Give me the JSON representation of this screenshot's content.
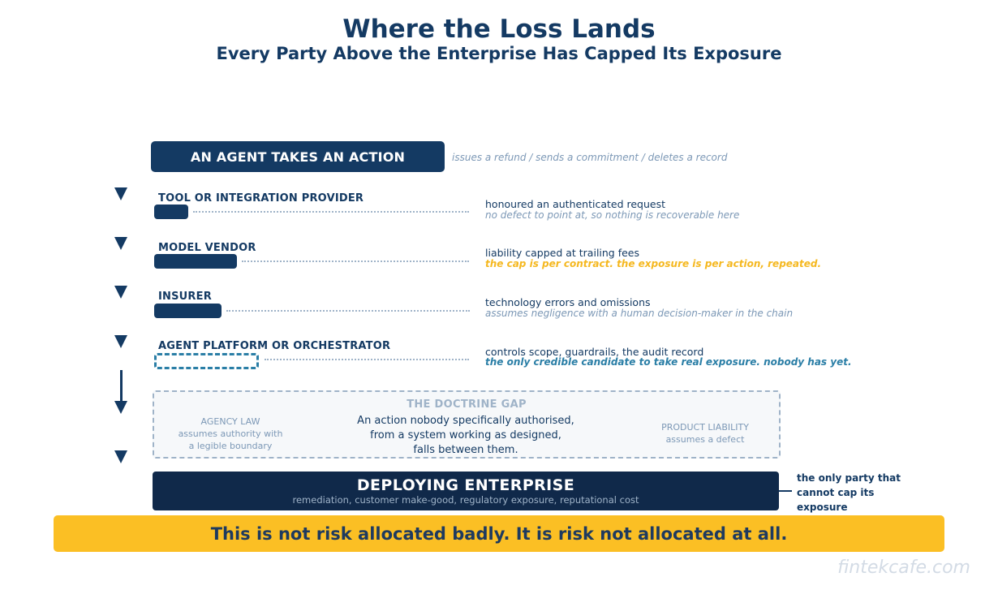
{
  "title": "Where the Loss Lands",
  "subtitle": "Every Party Above the Enterprise Has Capped Its Exposure",
  "action": {
    "label": "AN AGENT TAKES AN ACTION",
    "note": "issues a refund  /  sends a commitment  /  deletes a record"
  },
  "tiers": [
    {
      "label": "TOOL OR INTEGRATION PROVIDER",
      "bar_style": "solid",
      "desc": "honoured an authenticated request",
      "sub": "no defect to point at, so nothing is recoverable here",
      "sub_style": "muted"
    },
    {
      "label": "MODEL VENDOR",
      "bar_style": "solid",
      "desc": "liability capped at trailing fees",
      "sub": "the cap is per contract. the exposure is per action, repeated.",
      "sub_style": "gold"
    },
    {
      "label": "INSURER",
      "bar_style": "solid",
      "desc": "technology errors and omissions",
      "sub": "assumes negligence with a human decision-maker in the chain",
      "sub_style": "muted"
    },
    {
      "label": "AGENT PLATFORM OR ORCHESTRATOR",
      "bar_style": "dashed",
      "desc": "controls scope, guardrails, the audit record",
      "sub": "the only credible candidate to take real exposure. nobody has yet.",
      "sub_style": "teal"
    }
  ],
  "gap": {
    "title": "THE DOCTRINE GAP",
    "left_line1": "AGENCY LAW",
    "left_line2": "assumes authority with",
    "left_line3": "a legible boundary",
    "center_line1": "An action nobody specifically authorised,",
    "center_line2": "from a system working as designed,",
    "center_line3": "falls between them.",
    "right_line1": "PRODUCT LIABILITY",
    "right_line2": "assumes a defect"
  },
  "enterprise": {
    "title": "DEPLOYING ENTERPRISE",
    "subtitle": "remediation, customer make-good, regulatory exposure, reputational cost",
    "note_line1": "the only party that",
    "note_line2": "cannot cap its",
    "note_line3": "exposure"
  },
  "banner": "This is not risk allocated badly. It is risk not allocated at all.",
  "watermark": "fintekcafe.com",
  "colors": {
    "navy": "#143a63",
    "dark_navy": "#10294a",
    "muted": "#7c98b6",
    "gold": "#fbbf24",
    "teal": "#2a7ea6"
  }
}
